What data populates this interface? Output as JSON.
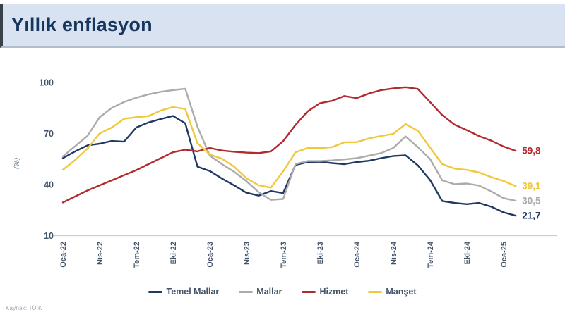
{
  "header": {
    "title": "Yıllık enflasyon"
  },
  "footer": {
    "source": "Kaynak: TÜİK"
  },
  "chart_data": {
    "type": "line",
    "title": "Yıllık enflasyon",
    "ylabel": "(%)",
    "ylim": [
      10,
      100
    ],
    "y_ticks": [
      100,
      70,
      40,
      10
    ],
    "grid": false,
    "legend_position": "bottom",
    "frequency": "monthly",
    "x_tick_step_months": 3,
    "x_tick_labels": [
      "Oca-22",
      "Nis-22",
      "Tem-22",
      "Eki-22",
      "Oca-23",
      "Nis-23",
      "Tem-23",
      "Eki-23",
      "Oca-24",
      "Nis-24",
      "Tem-24",
      "Eki-24",
      "Oca-25"
    ],
    "series": [
      {
        "name": "Temel Mallar",
        "color": "#1f3864",
        "end_label": "21,7",
        "values": [
          55.5,
          59.5,
          63.0,
          64.0,
          65.6,
          65.2,
          73.5,
          76.5,
          78.5,
          80.3,
          76.0,
          50.5,
          48.0,
          43.5,
          39.5,
          35.2,
          33.5,
          36.2,
          35.0,
          51.5,
          53.2,
          53.4,
          52.6,
          52.0,
          53.2,
          54.0,
          55.5,
          56.8,
          57.2,
          51.3,
          42.7,
          30.3,
          29.2,
          28.5,
          29.2,
          27.0,
          23.7,
          21.7
        ]
      },
      {
        "name": "Mallar",
        "color": "#ababab",
        "end_label": "30,5",
        "values": [
          56.5,
          62.5,
          68.5,
          79.5,
          85.0,
          88.5,
          91.0,
          93.0,
          94.5,
          95.5,
          96.3,
          74.0,
          57.0,
          52.0,
          47.5,
          42.0,
          35.5,
          31.0,
          31.5,
          52.0,
          53.8,
          53.8,
          54.2,
          54.8,
          55.5,
          57.0,
          58.5,
          61.5,
          68.3,
          62.0,
          55.0,
          42.5,
          40.2,
          40.6,
          39.4,
          36.0,
          32.0,
          30.5
        ]
      },
      {
        "name": "Hizmet",
        "color": "#b2292e",
        "end_label": "59,8",
        "values": [
          29.5,
          33.0,
          36.5,
          39.5,
          42.5,
          45.5,
          48.5,
          52.0,
          55.5,
          59.0,
          60.5,
          59.5,
          61.5,
          60.0,
          59.3,
          58.8,
          58.5,
          59.5,
          65.5,
          75.0,
          83.0,
          87.8,
          89.2,
          92.0,
          90.8,
          93.5,
          95.5,
          96.5,
          97.2,
          96.2,
          88.5,
          80.8,
          75.2,
          72.0,
          68.5,
          65.8,
          62.4,
          59.8
        ]
      },
      {
        "name": "Manşet",
        "color": "#f0c83c",
        "end_label": "39,1",
        "values": [
          48.7,
          54.4,
          61.1,
          70.0,
          73.5,
          78.6,
          79.6,
          80.2,
          83.5,
          85.5,
          84.4,
          64.3,
          57.7,
          55.2,
          50.5,
          43.7,
          39.6,
          38.2,
          47.8,
          58.9,
          61.5,
          61.4,
          62.0,
          64.8,
          64.9,
          67.1,
          68.5,
          69.8,
          75.5,
          71.6,
          61.8,
          52.0,
          49.4,
          48.6,
          47.1,
          44.4,
          42.1,
          39.1
        ]
      }
    ]
  }
}
